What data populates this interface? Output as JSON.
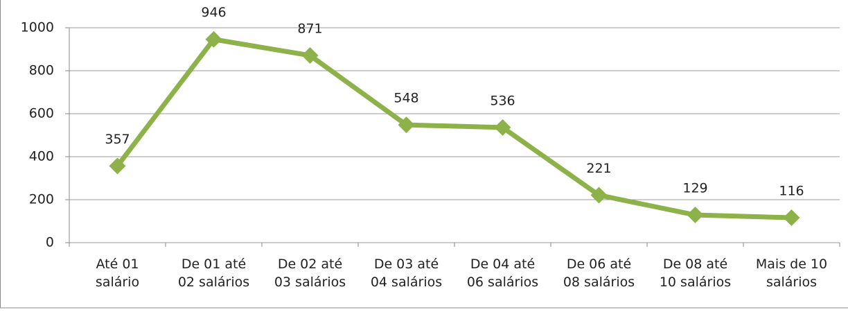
{
  "chart_data": {
    "type": "line",
    "categories": [
      "Até 01\nsalário",
      "De 01 até\n02 salários",
      "De 02 até\n03 salários",
      "De 03 até\n04 salários",
      "De 04 até\n06 salários",
      "De 06 até\n08 salários",
      "De 08 até\n10 salários",
      "Mais de 10\nsalários"
    ],
    "values": [
      357,
      946,
      871,
      548,
      536,
      221,
      129,
      116
    ],
    "color": "#8db24a",
    "ylim": [
      0,
      1000
    ],
    "yticks": [
      0,
      200,
      400,
      600,
      800,
      1000
    ],
    "grid": true
  }
}
